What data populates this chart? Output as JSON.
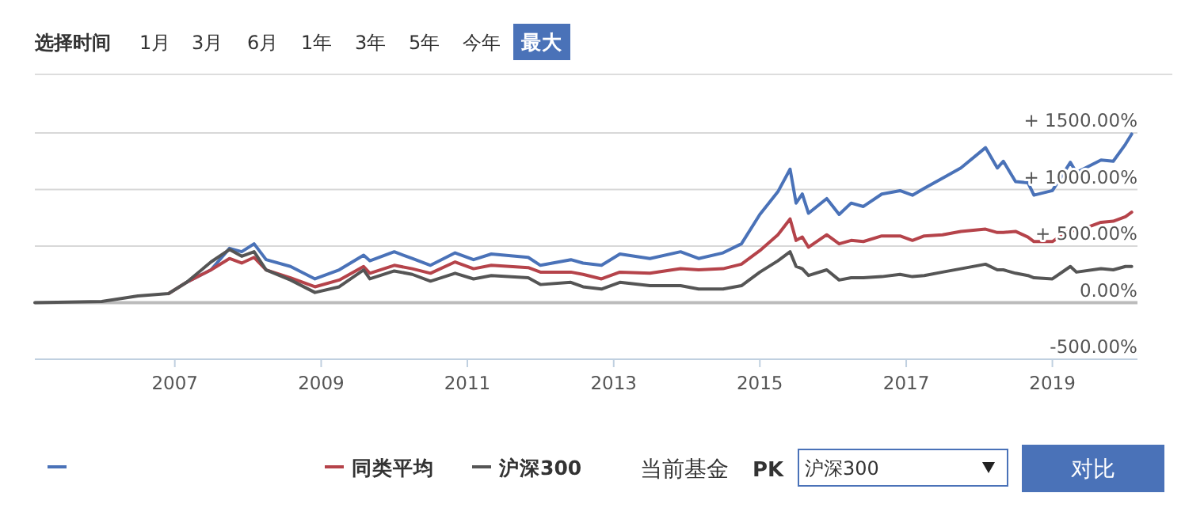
{
  "chart_data": {
    "type": "line",
    "x": [
      "2005-02",
      "2006-01",
      "2006-07",
      "2006-12",
      "2007-03",
      "2007-07",
      "2007-10",
      "2007-12",
      "2008-02",
      "2008-04",
      "2008-08",
      "2008-12",
      "2009-04",
      "2009-08",
      "2009-09",
      "2010-01",
      "2010-04",
      "2010-07",
      "2010-11",
      "2011-02",
      "2011-05",
      "2011-11",
      "2012-01",
      "2012-06",
      "2012-08",
      "2012-11",
      "2013-02",
      "2013-07",
      "2013-12",
      "2014-03",
      "2014-07",
      "2014-10",
      "2015-01",
      "2015-04",
      "2015-06",
      "2015-07",
      "2015-08",
      "2015-09",
      "2015-12",
      "2016-02",
      "2016-04",
      "2016-06",
      "2016-09",
      "2016-12",
      "2017-02",
      "2017-04",
      "2017-07",
      "2017-10",
      "2018-02",
      "2018-04",
      "2018-05",
      "2018-07",
      "2018-09",
      "2018-10",
      "2019-01",
      "2019-04",
      "2019-05",
      "2019-09",
      "2019-11",
      "2020-01",
      "2020-02"
    ],
    "series": [
      {
        "color": "#4a72b8",
        "values": [
          null,
          null,
          null,
          null,
          180,
          290,
          480,
          450,
          520,
          380,
          320,
          210,
          290,
          420,
          370,
          450,
          390,
          330,
          440,
          380,
          430,
          400,
          330,
          380,
          350,
          330,
          430,
          390,
          450,
          390,
          440,
          520,
          780,
          980,
          1180,
          880,
          960,
          790,
          920,
          780,
          880,
          850,
          960,
          990,
          950,
          1010,
          1100,
          1190,
          1370,
          1190,
          1250,
          1070,
          1060,
          950,
          990,
          1240,
          1150,
          1260,
          1250,
          1400,
          1490
        ]
      },
      {
        "name": "同类平均",
        "color": "#b5434a",
        "values": [
          null,
          null,
          null,
          80,
          180,
          290,
          390,
          350,
          400,
          290,
          220,
          140,
          200,
          320,
          260,
          330,
          300,
          260,
          360,
          300,
          330,
          310,
          270,
          270,
          250,
          210,
          270,
          260,
          300,
          290,
          300,
          340,
          460,
          600,
          740,
          550,
          580,
          490,
          600,
          520,
          550,
          540,
          590,
          590,
          550,
          590,
          600,
          630,
          650,
          620,
          620,
          630,
          580,
          540,
          540,
          650,
          630,
          710,
          720,
          760,
          800
        ]
      },
      {
        "name": "沪深300",
        "color": "#555555",
        "values": [
          0,
          10,
          60,
          80,
          180,
          360,
          470,
          410,
          450,
          290,
          200,
          90,
          140,
          290,
          210,
          280,
          250,
          190,
          260,
          210,
          240,
          220,
          160,
          180,
          140,
          120,
          180,
          150,
          150,
          120,
          120,
          150,
          270,
          370,
          450,
          320,
          300,
          240,
          290,
          200,
          220,
          220,
          230,
          250,
          230,
          240,
          270,
          300,
          340,
          290,
          290,
          260,
          240,
          220,
          210,
          320,
          270,
          300,
          290,
          320,
          320
        ]
      }
    ],
    "xlim": [
      "2005-02",
      "2020-03"
    ],
    "xticks": [
      "2007",
      "2009",
      "2011",
      "2013",
      "2015",
      "2017",
      "2019"
    ],
    "ylim": [
      -500,
      1500
    ],
    "yticks": [
      {
        "value": 1500,
        "label": "+ 1500.00%"
      },
      {
        "value": 1000,
        "label": "+ 1000.00%"
      },
      {
        "value": 500,
        "label": "+ 500.00%"
      },
      {
        "value": 0,
        "label": "0.00%"
      },
      {
        "value": -500,
        "label": "-500.00%"
      }
    ],
    "grid": "y",
    "legend": "bottom",
    "marker": "none",
    "line_style": "solid",
    "annotations": [
      "选择时间",
      "1月",
      "3月",
      "6月",
      "1年",
      "3年",
      "5年",
      "今年",
      "最大",
      "当前基金",
      "PK",
      "沪深300",
      "对比"
    ]
  }
}
